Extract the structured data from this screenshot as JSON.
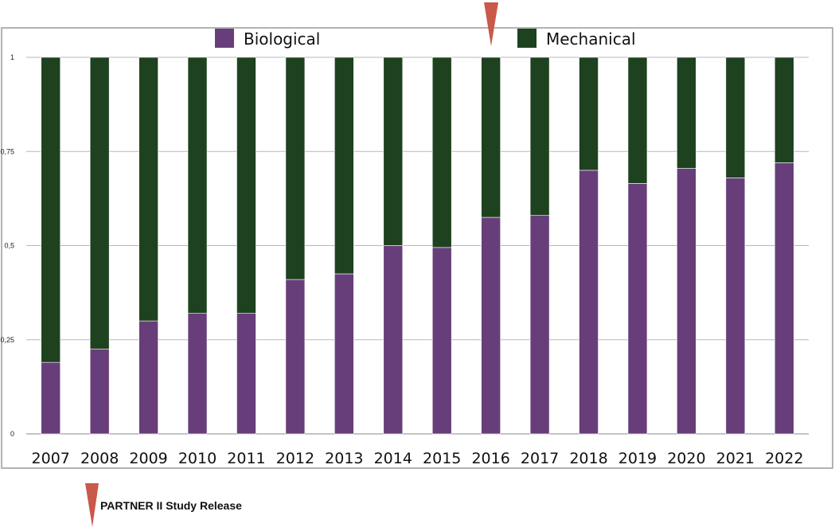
{
  "chart_data": {
    "type": "bar",
    "stacked": true,
    "categories": [
      "2007",
      "2008",
      "2009",
      "2010",
      "2011",
      "2012",
      "2013",
      "2014",
      "2015",
      "2016",
      "2017",
      "2018",
      "2019",
      "2020",
      "2021",
      "2022"
    ],
    "series": [
      {
        "name": "Biological",
        "color": "#673e7a",
        "values": [
          0.19,
          0.225,
          0.3,
          0.32,
          0.32,
          0.41,
          0.425,
          0.5,
          0.495,
          0.575,
          0.58,
          0.7,
          0.665,
          0.705,
          0.68,
          0.72
        ]
      },
      {
        "name": "Mechanical",
        "color": "#1e421f",
        "values": [
          0.81,
          0.775,
          0.7,
          0.68,
          0.68,
          0.59,
          0.575,
          0.5,
          0.505,
          0.425,
          0.42,
          0.3,
          0.335,
          0.295,
          0.32,
          0.28
        ]
      }
    ],
    "yticks": [
      0,
      0.25,
      0.5,
      0.75,
      1
    ],
    "ytick_labels": [
      "0",
      "0,25",
      "0,5",
      "0,75",
      "1"
    ],
    "ylim": [
      0,
      1
    ],
    "grid": true,
    "legend": "top-center",
    "annotation": {
      "label": "PARTNER II Study Release",
      "marker_color": "#c9594b",
      "at_category": "2016"
    }
  }
}
